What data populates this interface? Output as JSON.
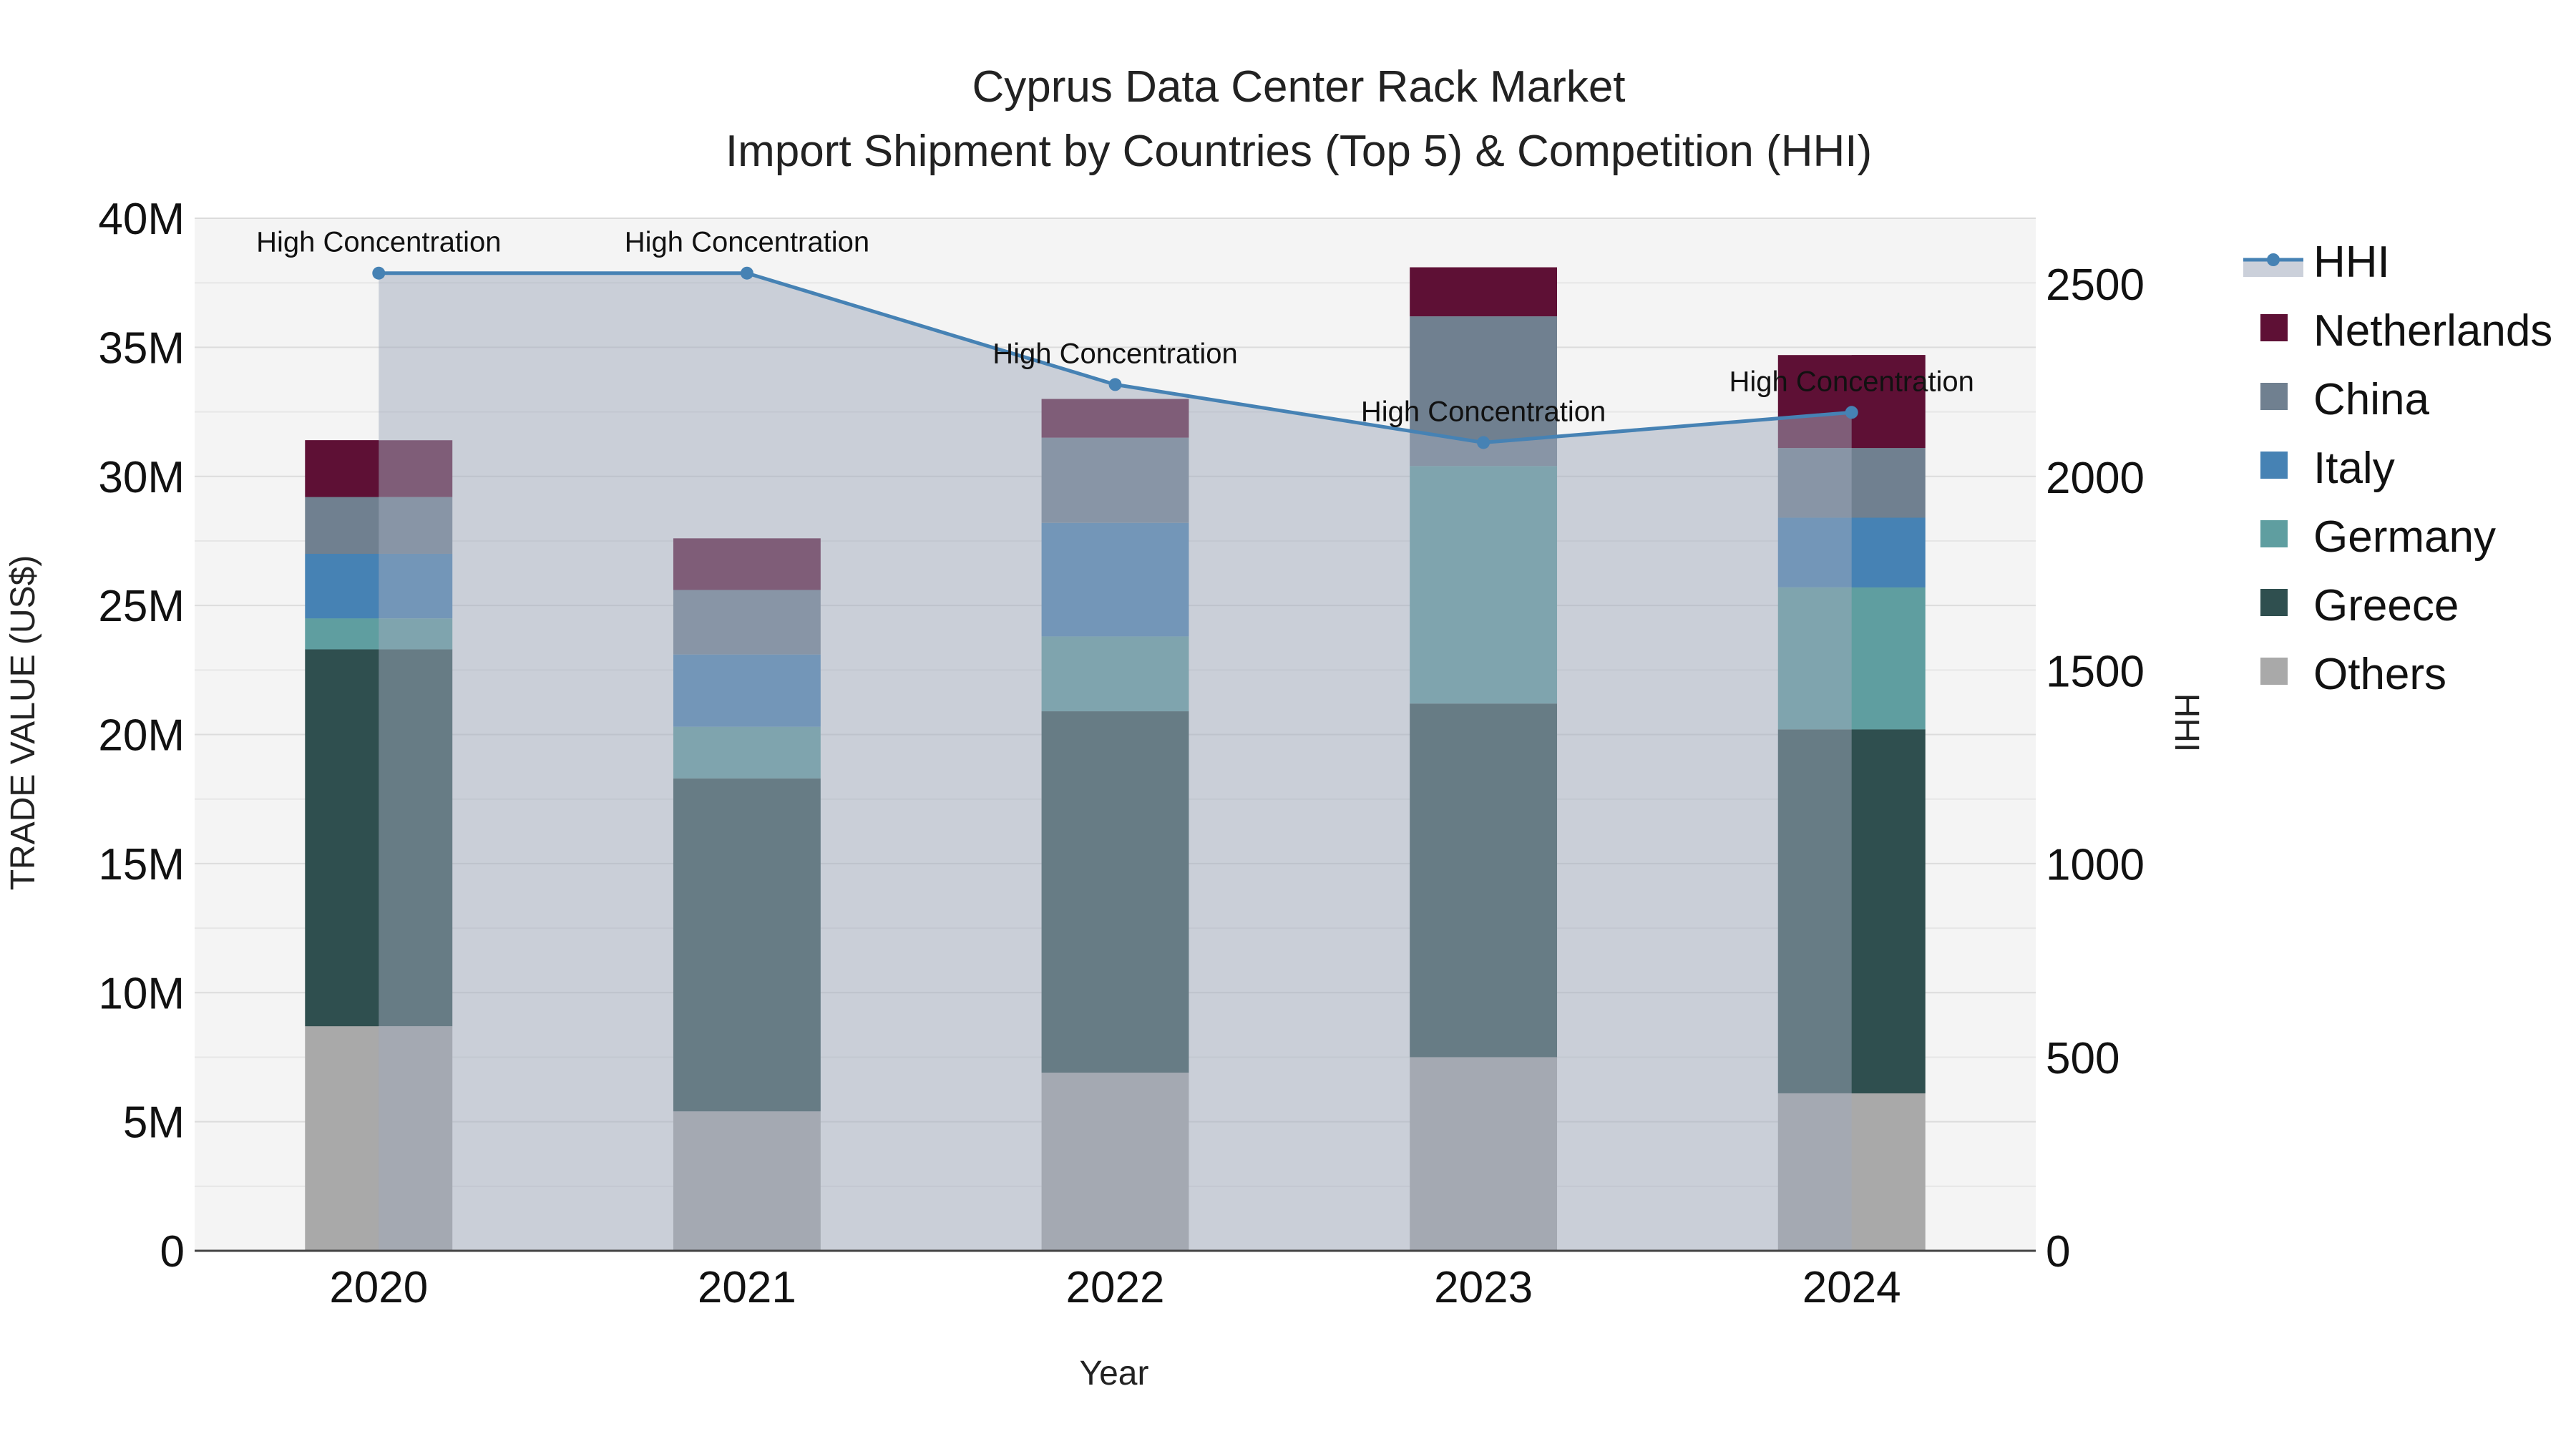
{
  "chart_data": {
    "type": "bar",
    "title": "Cyprus Data Center Rack Market",
    "subtitle": "Import Shipment by Countries (Top 5) & Competition (HHI)",
    "xlabel": "Year",
    "ylabel": "TRADE VALUE (US$)",
    "y2label": "HHI",
    "categories": [
      "2020",
      "2021",
      "2022",
      "2023",
      "2024"
    ],
    "ylim": [
      0,
      40000000
    ],
    "y2lim": [
      0,
      2670
    ],
    "yticks": [
      {
        "value": 0,
        "label": "0"
      },
      {
        "value": 5000000,
        "label": "5M"
      },
      {
        "value": 10000000,
        "label": "10M"
      },
      {
        "value": 15000000,
        "label": "15M"
      },
      {
        "value": 20000000,
        "label": "20M"
      },
      {
        "value": 25000000,
        "label": "25M"
      },
      {
        "value": 30000000,
        "label": "30M"
      },
      {
        "value": 35000000,
        "label": "35M"
      },
      {
        "value": 40000000,
        "label": "40M"
      }
    ],
    "y2ticks": [
      {
        "value": 0,
        "label": "0"
      },
      {
        "value": 500,
        "label": "500"
      },
      {
        "value": 1000,
        "label": "1000"
      },
      {
        "value": 1500,
        "label": "1500"
      },
      {
        "value": 2000,
        "label": "2000"
      },
      {
        "value": 2500,
        "label": "2500"
      }
    ],
    "series": [
      {
        "name": "Others",
        "color": "#a9a9a9",
        "values": [
          8700000,
          5400000,
          6900000,
          7500000,
          6100000
        ]
      },
      {
        "name": "Greece",
        "color": "#2f4f4f",
        "values": [
          14600000,
          12900000,
          14000000,
          13700000,
          14100000
        ]
      },
      {
        "name": "Germany",
        "color": "#5f9ea0",
        "values": [
          1200000,
          2000000,
          2900000,
          9200000,
          5500000
        ]
      },
      {
        "name": "Italy",
        "color": "#4682b4",
        "values": [
          2500000,
          2800000,
          4400000,
          0,
          2700000
        ]
      },
      {
        "name": "China",
        "color": "#708090",
        "values": [
          2200000,
          2500000,
          3300000,
          5800000,
          2700000
        ]
      },
      {
        "name": "Netherlands",
        "color": "#5e1035",
        "values": [
          2200000,
          2000000,
          1500000,
          1900000,
          3600000
        ]
      }
    ],
    "hhi": {
      "name": "HHI",
      "color": "#4682b4",
      "values": [
        2528,
        2528,
        2240,
        2090,
        2168
      ],
      "annotations": [
        "High Concentration",
        "High Concentration",
        "High Concentration",
        "High Concentration",
        "High Concentration"
      ]
    },
    "legend": [
      "HHI",
      "Netherlands",
      "China",
      "Italy",
      "Germany",
      "Greece",
      "Others"
    ],
    "legend_position": "right",
    "grid": true
  }
}
